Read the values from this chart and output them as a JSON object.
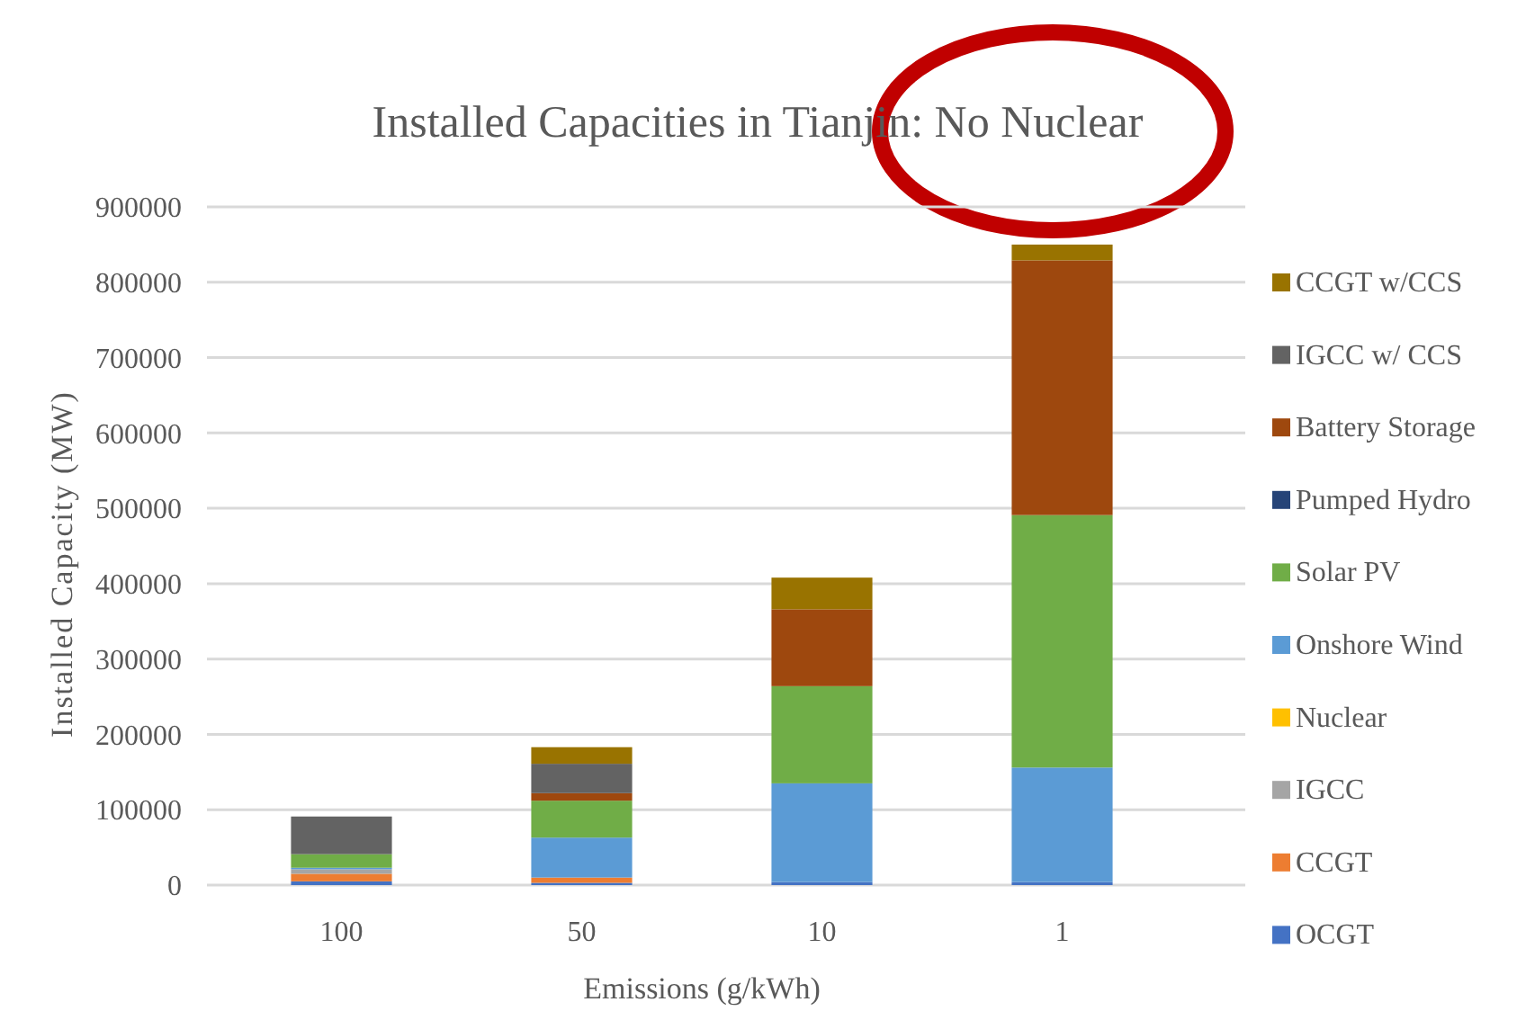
{
  "chart_data": {
    "type": "bar",
    "title": "Installed Capacities in Tianjin: No Nuclear",
    "xlabel": "Emissions (g/kWh)",
    "ylabel": "Installed Capacity (MW)",
    "categories": [
      "100",
      "50",
      "10",
      "1"
    ],
    "stacked": true,
    "ylim": [
      0,
      900000
    ],
    "yticks": [
      0,
      100000,
      200000,
      300000,
      400000,
      500000,
      600000,
      700000,
      800000,
      900000
    ],
    "grid": "y",
    "legend": "right",
    "series": [
      {
        "name": "OCGT",
        "color": "#4472c4",
        "values": [
          5000,
          3000,
          4000,
          4000
        ]
      },
      {
        "name": "CCGT",
        "color": "#ed7d31",
        "values": [
          10000,
          7000,
          0,
          0
        ]
      },
      {
        "name": "IGCC",
        "color": "#a5a5a5",
        "values": [
          6000,
          0,
          0,
          0
        ]
      },
      {
        "name": "Nuclear",
        "color": "#ffc000",
        "values": [
          0,
          0,
          0,
          0
        ]
      },
      {
        "name": "Onshore Wind",
        "color": "#5b9bd5",
        "values": [
          2000,
          53000,
          131000,
          152000
        ]
      },
      {
        "name": "Solar PV",
        "color": "#70ad47",
        "values": [
          18000,
          49000,
          129000,
          335000
        ]
      },
      {
        "name": "Pumped Hydro",
        "color": "#264478",
        "values": [
          0,
          0,
          0,
          0
        ]
      },
      {
        "name": "Battery Storage",
        "color": "#9e480e",
        "values": [
          0,
          10000,
          102000,
          338000
        ]
      },
      {
        "name": "IGCC w/ CCS",
        "color": "#636363",
        "values": [
          50000,
          39000,
          0,
          0
        ]
      },
      {
        "name": "CCGT w/CCS",
        "color": "#997300",
        "values": [
          0,
          22000,
          42000,
          21000
        ]
      }
    ]
  }
}
